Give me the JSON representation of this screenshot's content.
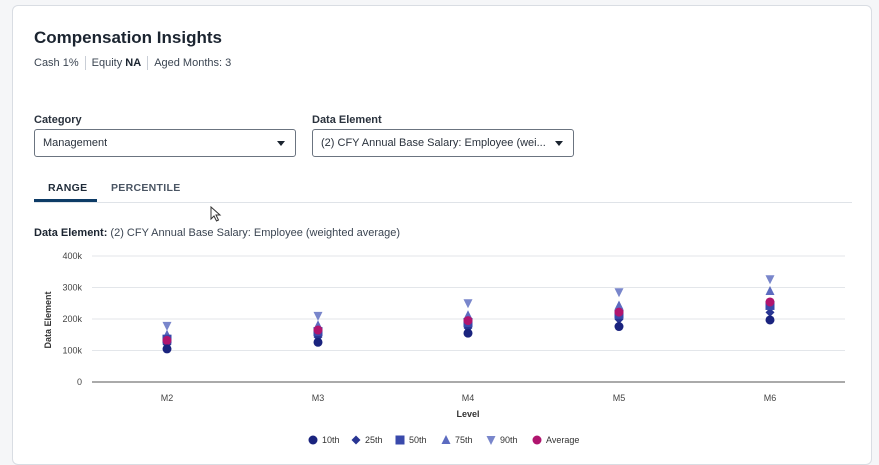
{
  "header": {
    "title": "Compensation Insights",
    "cash_label": "Cash",
    "cash_value": "1%",
    "equity_label": "Equity",
    "equity_value": "NA",
    "aged_label": "Aged Months:",
    "aged_value": "3"
  },
  "filters": {
    "category_label": "Category",
    "category_value": "Management",
    "element_label": "Data Element",
    "element_value": "(2) CFY Annual Base Salary: Employee (wei..."
  },
  "tabs": [
    {
      "label": "RANGE",
      "active": true
    },
    {
      "label": "PERCENTILE",
      "active": false
    }
  ],
  "chart_caption": {
    "prefix": "Data Element:",
    "text": "(2) CFY Annual Base Salary: Employee (weighted average)"
  },
  "chart_data": {
    "type": "scatter",
    "categories": [
      "M2",
      "M3",
      "M4",
      "M5",
      "M6"
    ],
    "xlabel": "Level",
    "ylabel": "Data Element",
    "ylim": [
      0,
      400000
    ],
    "yticks": [
      0,
      100000,
      200000,
      300000,
      400000
    ],
    "ytick_labels": [
      "0",
      "100k",
      "200k",
      "300k",
      "400k"
    ],
    "grid": true,
    "legend_position": "bottom",
    "series": [
      {
        "name": "10th",
        "marker": "circle",
        "color": "#1a237e",
        "values": [
          105000,
          126000,
          155000,
          176000,
          197000
        ]
      },
      {
        "name": "25th",
        "marker": "diamond",
        "color": "#283593",
        "values": [
          120000,
          143000,
          172000,
          199000,
          221000
        ]
      },
      {
        "name": "50th",
        "marker": "square",
        "color": "#3949ab",
        "values": [
          136000,
          160000,
          189000,
          215000,
          243000
        ]
      },
      {
        "name": "75th",
        "marker": "triangle-up",
        "color": "#5c6bc0",
        "values": [
          150000,
          180000,
          212000,
          243000,
          289000
        ]
      },
      {
        "name": "90th",
        "marker": "triangle-down",
        "color": "#7986cb",
        "values": [
          178000,
          210000,
          250000,
          285000,
          326000
        ]
      },
      {
        "name": "Average",
        "marker": "circle",
        "color": "#b0156e",
        "values": [
          132000,
          165000,
          195000,
          222000,
          254000
        ]
      }
    ]
  }
}
